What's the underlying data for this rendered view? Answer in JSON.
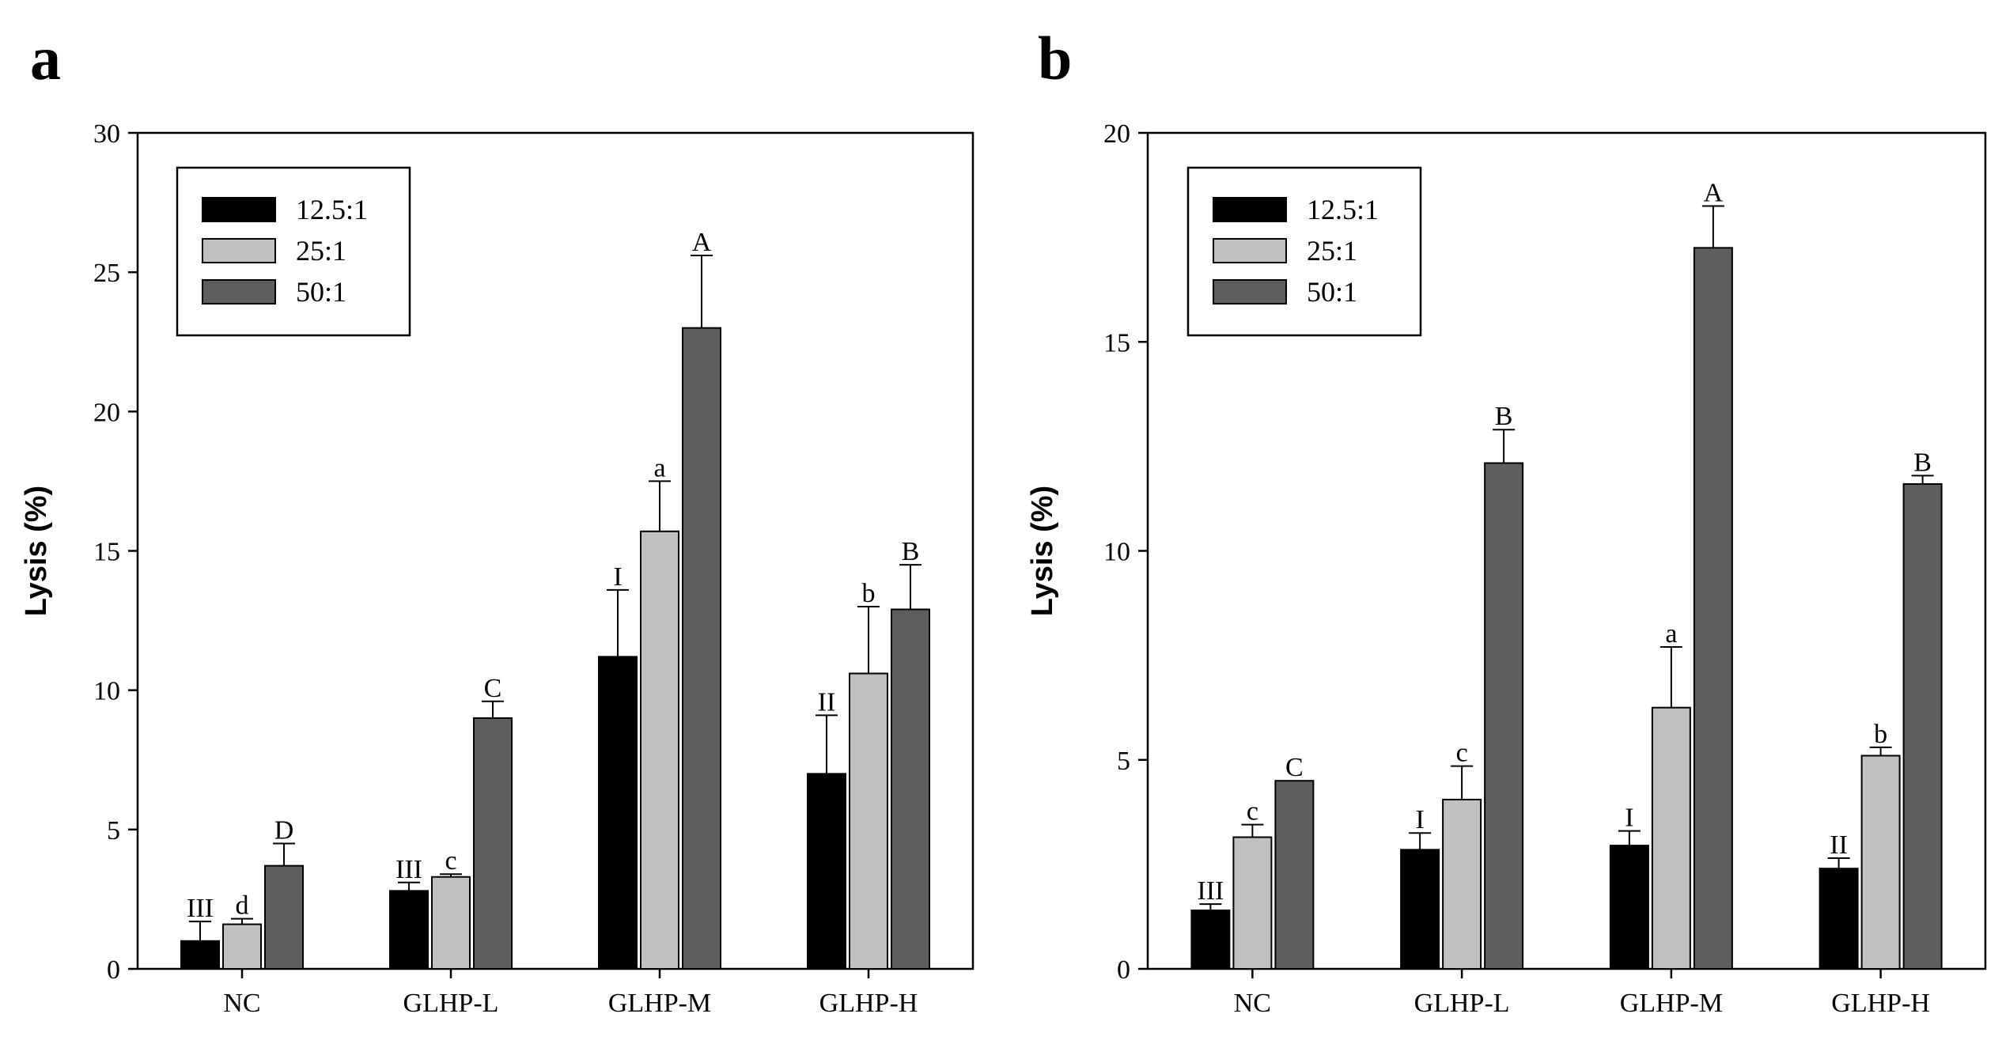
{
  "chart_data": [
    {
      "panel": "a",
      "type": "bar",
      "title": "",
      "xlabel": "",
      "ylabel": "Lysis (%)",
      "ylim": [
        0,
        30
      ],
      "yticks": [
        0,
        5,
        10,
        15,
        20,
        25,
        30
      ],
      "categories": [
        "NC",
        "GLHP-L",
        "GLHP-M",
        "GLHP-H"
      ],
      "legend_position": "top-left",
      "series": [
        {
          "name": "12.5:1",
          "color": "#000000",
          "values": [
            1.0,
            2.8,
            11.2,
            7.0
          ],
          "errors": [
            0.7,
            0.3,
            2.4,
            2.1
          ],
          "labels": [
            "III",
            "III",
            "I",
            "II"
          ]
        },
        {
          "name": "25:1",
          "color": "#c0c0c0",
          "values": [
            1.6,
            3.3,
            15.7,
            10.6
          ],
          "errors": [
            0.2,
            0.1,
            1.8,
            2.4
          ],
          "labels": [
            "d",
            "c",
            "a",
            "b"
          ]
        },
        {
          "name": "50:1",
          "color": "#5e5e5e",
          "values": [
            3.7,
            9.0,
            23.0,
            12.9
          ],
          "errors": [
            0.8,
            0.6,
            2.6,
            1.6
          ],
          "labels": [
            "D",
            "C",
            "A",
            "B"
          ]
        }
      ]
    },
    {
      "panel": "b",
      "type": "bar",
      "title": "",
      "xlabel": "",
      "ylabel": "Lysis (%)",
      "ylim": [
        0,
        20
      ],
      "yticks": [
        0,
        5,
        10,
        15,
        20
      ],
      "categories": [
        "NC",
        "GLHP-L",
        "GLHP-M",
        "GLHP-H"
      ],
      "legend_position": "top-left",
      "series": [
        {
          "name": "12.5:1",
          "color": "#000000",
          "values": [
            1.4,
            2.85,
            2.95,
            2.4
          ],
          "errors": [
            0.15,
            0.4,
            0.35,
            0.25
          ],
          "labels": [
            "III",
            "I",
            "I",
            "II"
          ]
        },
        {
          "name": "25:1",
          "color": "#c0c0c0",
          "values": [
            3.15,
            4.05,
            6.25,
            5.1
          ],
          "errors": [
            0.3,
            0.8,
            1.45,
            0.2
          ],
          "labels": [
            "c",
            "c",
            "a",
            "b"
          ]
        },
        {
          "name": "50:1",
          "color": "#5e5e5e",
          "values": [
            4.5,
            12.1,
            17.25,
            11.6
          ],
          "errors": [
            0.0,
            0.8,
            1.0,
            0.2
          ],
          "labels": [
            "C",
            "B",
            "A",
            "B"
          ]
        }
      ]
    }
  ]
}
